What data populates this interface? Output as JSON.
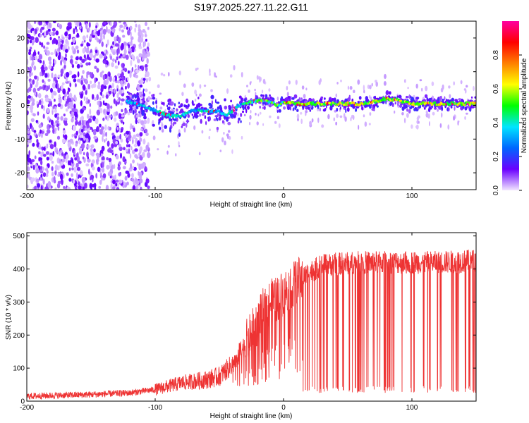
{
  "title": "S197.2025.227.11.22.G11",
  "chart_data": [
    {
      "type": "heatmap",
      "xlabel": "Height of straight line (km)",
      "ylabel": "Frequency (Hz)",
      "xlim": [
        -200,
        150
      ],
      "ylim": [
        -25,
        25
      ],
      "xticks": [
        -200,
        -100,
        0,
        100
      ],
      "yticks": [
        -20,
        -10,
        0,
        10,
        20
      ],
      "colorbar": {
        "label": "Normalized spectral amplitude",
        "range": [
          0,
          1
        ],
        "ticks": [
          "0.0",
          "0.2",
          "0.4",
          "0.6",
          "0.8"
        ],
        "tick_values": [
          0,
          0.2,
          0.4,
          0.6,
          0.8
        ],
        "colors": [
          "#f2e6ff",
          "#6a00ff",
          "#0066ff",
          "#00e5ff",
          "#00ff00",
          "#ffff00",
          "#ff8000",
          "#ff0000",
          "#ff00a0"
        ]
      },
      "ridge": {
        "x": [
          -120,
          -110,
          -100,
          -90,
          -80,
          -70,
          -60,
          -50,
          -45,
          -40,
          -35,
          -30,
          -20,
          -10,
          -5,
          0,
          10,
          20,
          30,
          40,
          50,
          60,
          70,
          80,
          90,
          100,
          110,
          120,
          130,
          140,
          150
        ],
        "y": [
          1,
          0,
          -1.5,
          -3,
          -3,
          -1.5,
          -1.5,
          -2,
          -3,
          -1.5,
          0,
          0.5,
          1.5,
          1,
          0,
          1,
          0.5,
          0.5,
          0.5,
          0.5,
          0.5,
          0.5,
          1,
          2,
          1.5,
          0.5,
          0.5,
          0.5,
          0.5,
          0.5,
          0.5
        ]
      },
      "noise_region_x": [
        -200,
        -105
      ]
    },
    {
      "type": "line",
      "xlabel": "Height of straight line (km)",
      "ylabel": "SNR (10 * v/v)",
      "xlim": [
        -200,
        150
      ],
      "ylim": [
        0,
        510
      ],
      "xticks": [
        -200,
        -100,
        0,
        100
      ],
      "yticks": [
        0,
        100,
        200,
        300,
        400,
        500
      ],
      "color": "#ee3333",
      "trend": {
        "x": [
          -200,
          -150,
          -120,
          -100,
          -80,
          -60,
          -50,
          -40,
          -30,
          -20,
          -15,
          -10,
          -5,
          0,
          10,
          20,
          30,
          40,
          60,
          80,
          100,
          120,
          150
        ],
        "y": [
          15,
          20,
          25,
          35,
          55,
          65,
          75,
          110,
          170,
          240,
          280,
          300,
          310,
          330,
          360,
          390,
          410,
          415,
          420,
          420,
          420,
          420,
          425
        ]
      },
      "dropouts": {
        "x_start": 15,
        "x_end": 150,
        "gap_x": [
          93,
          98
        ],
        "low_value": 25
      }
    }
  ]
}
